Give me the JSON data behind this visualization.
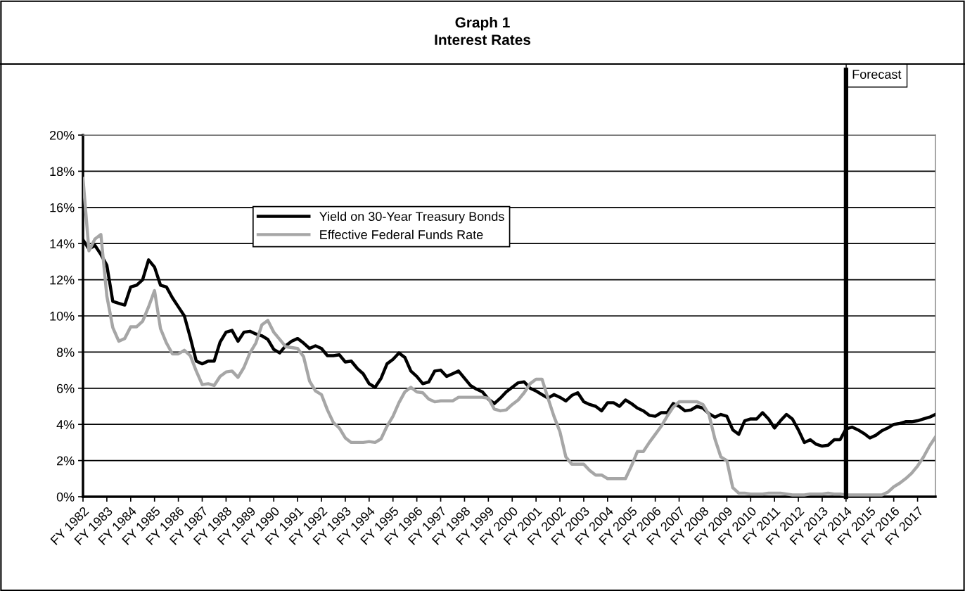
{
  "chart_data": {
    "type": "line",
    "title": "Graph 1\nInterest Rates",
    "categories": [
      "FY 1982",
      null,
      null,
      null,
      "FY 1983",
      null,
      null,
      null,
      "FY 1984",
      null,
      null,
      null,
      "FY 1985",
      null,
      null,
      null,
      "FY 1986",
      null,
      null,
      null,
      "FY 1987",
      null,
      null,
      null,
      "FY 1988",
      null,
      null,
      null,
      "FY 1989",
      null,
      null,
      null,
      "FY 1990",
      null,
      null,
      null,
      "FY 1991",
      null,
      null,
      null,
      "FY 1992",
      null,
      null,
      null,
      "FY 1993",
      null,
      null,
      null,
      "FY 1994",
      null,
      null,
      null,
      "FY 1995",
      null,
      null,
      null,
      "FY 1996",
      null,
      null,
      null,
      "FY 1997",
      null,
      null,
      null,
      "FY 1998",
      null,
      null,
      null,
      "FY 1999",
      null,
      null,
      null,
      "FY 2000",
      null,
      null,
      null,
      "FY 2001",
      null,
      null,
      null,
      "FY 2002",
      null,
      null,
      null,
      "FY 2003",
      null,
      null,
      null,
      "FY 2004",
      null,
      null,
      null,
      "FY 2005",
      null,
      null,
      null,
      "FY 2006",
      null,
      null,
      null,
      "FY 2007",
      null,
      null,
      null,
      "FY 2008",
      null,
      null,
      null,
      "FY 2009",
      null,
      null,
      null,
      "FY 2010",
      null,
      null,
      null,
      "FY 2011",
      null,
      null,
      null,
      "FY 2012",
      null,
      null,
      null,
      "FY 2013",
      null,
      null,
      null,
      "FY 2014",
      null,
      null,
      null,
      "FY 2015",
      null,
      null,
      null,
      "FY 2016",
      null,
      null,
      null,
      "FY 2017",
      null,
      null,
      null
    ],
    "series": [
      {
        "name": "Yield on 30-Year Treasury Bonds",
        "color": "#000000",
        "values": [
          14.2,
          13.7,
          13.9,
          13.4,
          12.8,
          10.8,
          10.7,
          10.6,
          11.6,
          11.7,
          12.0,
          13.1,
          12.7,
          11.7,
          11.6,
          11.0,
          10.5,
          10.0,
          8.8,
          7.5,
          7.35,
          7.5,
          7.5,
          8.55,
          9.1,
          9.2,
          8.6,
          9.1,
          9.15,
          9.0,
          8.9,
          8.7,
          8.15,
          7.95,
          8.35,
          8.6,
          8.75,
          8.5,
          8.2,
          8.35,
          8.2,
          7.8,
          7.8,
          7.85,
          7.45,
          7.5,
          7.1,
          6.8,
          6.25,
          6.05,
          6.55,
          7.35,
          7.6,
          7.95,
          7.7,
          6.95,
          6.65,
          6.25,
          6.35,
          6.95,
          7.0,
          6.65,
          6.8,
          6.95,
          6.55,
          6.15,
          5.95,
          5.8,
          5.4,
          5.15,
          5.45,
          5.8,
          6.05,
          6.3,
          6.35,
          6.0,
          5.85,
          5.65,
          5.45,
          5.65,
          5.5,
          5.3,
          5.6,
          5.75,
          5.25,
          5.1,
          5.0,
          4.75,
          5.2,
          5.2,
          5.0,
          5.35,
          5.15,
          4.9,
          4.75,
          4.5,
          4.45,
          4.65,
          4.65,
          5.15,
          5.0,
          4.75,
          4.8,
          5.0,
          4.9,
          4.6,
          4.4,
          4.55,
          4.45,
          3.7,
          3.45,
          4.2,
          4.3,
          4.3,
          4.65,
          4.3,
          3.8,
          4.2,
          4.55,
          4.3,
          3.7,
          3.0,
          3.15,
          2.9,
          2.8,
          2.85,
          3.15,
          3.15,
          3.75,
          3.85,
          3.7,
          3.5,
          3.25,
          3.4,
          3.65,
          3.8,
          4.0,
          4.05,
          4.15,
          4.15,
          4.2,
          4.3,
          4.4,
          4.55
        ]
      },
      {
        "name": "Effective Federal Funds Rate",
        "color": "#a6a6a6",
        "values": [
          17.6,
          13.6,
          14.25,
          14.5,
          11.1,
          9.35,
          8.6,
          8.75,
          9.4,
          9.4,
          9.7,
          10.5,
          11.4,
          9.3,
          8.5,
          7.9,
          7.9,
          8.1,
          7.8,
          6.95,
          6.2,
          6.25,
          6.15,
          6.65,
          6.9,
          6.95,
          6.6,
          7.15,
          7.95,
          8.5,
          9.5,
          9.75,
          9.1,
          8.7,
          8.3,
          8.25,
          8.2,
          7.75,
          6.4,
          5.85,
          5.65,
          4.8,
          4.1,
          3.8,
          3.25,
          3.0,
          3.0,
          3.0,
          3.05,
          3.0,
          3.2,
          3.9,
          4.45,
          5.2,
          5.8,
          6.05,
          5.8,
          5.75,
          5.4,
          5.25,
          5.3,
          5.3,
          5.3,
          5.5,
          5.5,
          5.5,
          5.5,
          5.5,
          5.45,
          4.85,
          4.75,
          4.8,
          5.1,
          5.35,
          5.75,
          6.25,
          6.5,
          6.5,
          5.45,
          4.45,
          3.6,
          2.2,
          1.8,
          1.8,
          1.8,
          1.45,
          1.2,
          1.2,
          1.0,
          1.0,
          1.0,
          1.0,
          1.7,
          2.5,
          2.5,
          3.0,
          3.45,
          3.9,
          4.45,
          4.95,
          5.25,
          5.25,
          5.25,
          5.25,
          5.1,
          4.55,
          3.2,
          2.2,
          2.0,
          0.5,
          0.2,
          0.2,
          0.15,
          0.15,
          0.15,
          0.2,
          0.2,
          0.2,
          0.15,
          0.1,
          0.1,
          0.1,
          0.15,
          0.15,
          0.15,
          0.2,
          0.15,
          0.15,
          0.1,
          0.1,
          0.1,
          0.1,
          0.1,
          0.1,
          0.1,
          0.25,
          0.55,
          0.75,
          1.0,
          1.3,
          1.7,
          2.2,
          2.8,
          3.3
        ]
      }
    ],
    "ylim": [
      0,
      20
    ],
    "yticks": [
      {
        "value": 0,
        "label": "0%"
      },
      {
        "value": 2,
        "label": "2%"
      },
      {
        "value": 4,
        "label": "4%"
      },
      {
        "value": 6,
        "label": "6%"
      },
      {
        "value": 8,
        "label": "8%"
      },
      {
        "value": 10,
        "label": "10%"
      },
      {
        "value": 12,
        "label": "12%"
      },
      {
        "value": 14,
        "label": "14%"
      },
      {
        "value": 16,
        "label": "16%"
      },
      {
        "value": 18,
        "label": "18%"
      },
      {
        "value": 20,
        "label": "20%"
      }
    ],
    "ref_lines": [
      {
        "axis": "x",
        "value": "FY 2014",
        "label": "Forecast",
        "color": "#000000",
        "line_style": "solid"
      }
    ],
    "grid": "y",
    "legend": "top",
    "marker": "none",
    "line_style": "solid"
  }
}
